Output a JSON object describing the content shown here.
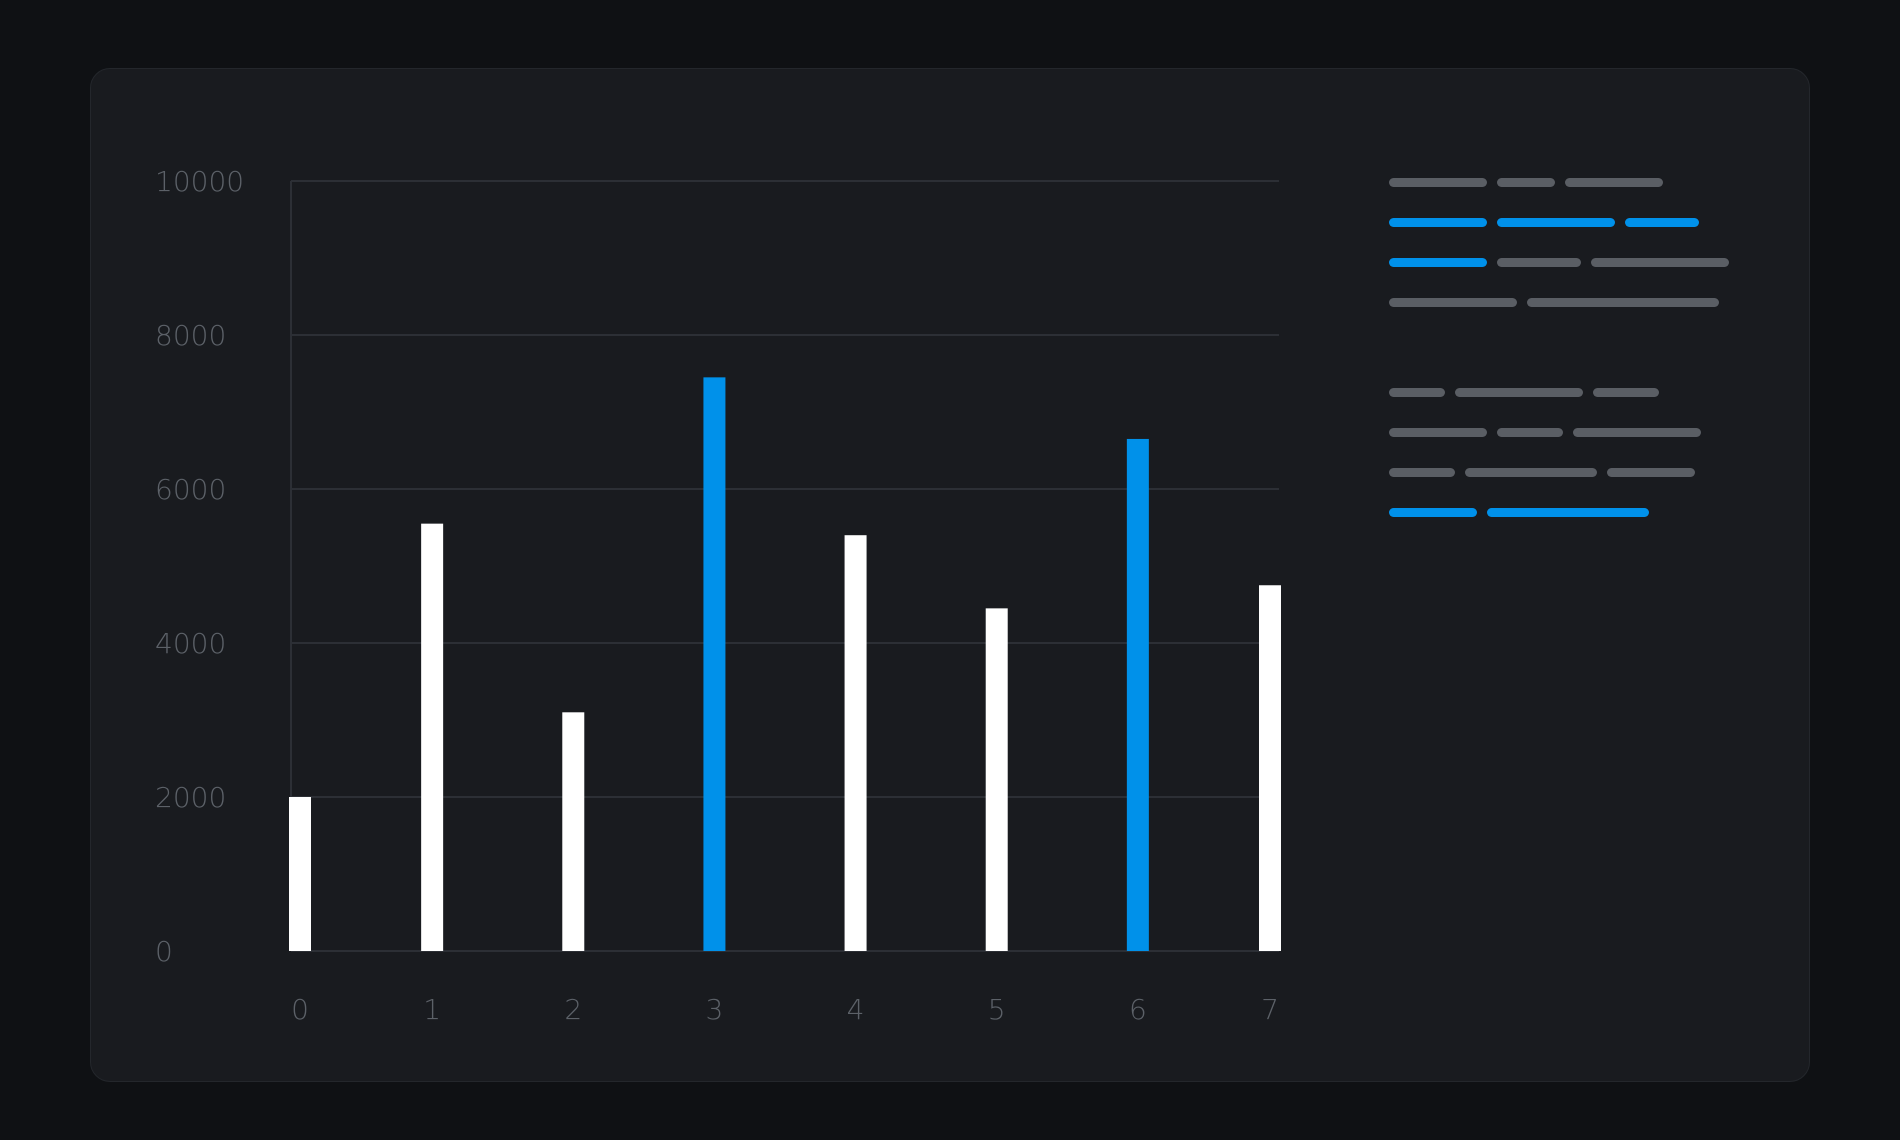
{
  "chart_data": {
    "type": "bar",
    "categories": [
      "0",
      "1",
      "2",
      "3",
      "4",
      "5",
      "6",
      "7"
    ],
    "values": [
      2000,
      5550,
      3100,
      7450,
      5400,
      4450,
      6650,
      4750
    ],
    "highlighted": [
      false,
      false,
      false,
      true,
      false,
      false,
      true,
      false
    ],
    "y_ticks": [
      "0",
      "2000",
      "4000",
      "6000",
      "8000",
      "10000"
    ],
    "ylim": [
      0,
      10000
    ],
    "grid": true,
    "legend_placement": "right",
    "colors": {
      "bar": "#ffffff",
      "highlight": "#0091ea",
      "axis_text": "#5c6168",
      "grid": "#2c2f35",
      "legend_muted": "#5a5e64",
      "background": "#191b1f",
      "page": "#0f1114"
    }
  },
  "legend": {
    "rows": [
      {
        "segments": [
          "muted",
          "muted",
          "muted"
        ]
      },
      {
        "segments": [
          "accent",
          "accent",
          "accent"
        ]
      },
      {
        "segments": [
          "accent",
          "muted",
          "muted"
        ]
      },
      {
        "segments": [
          "muted",
          "muted"
        ]
      },
      {
        "segments": [
          "muted",
          "muted",
          "muted"
        ]
      },
      {
        "segments": [
          "muted",
          "muted",
          "muted"
        ]
      },
      {
        "segments": [
          "muted",
          "muted",
          "muted"
        ]
      },
      {
        "segments": [
          "accent",
          "accent"
        ]
      }
    ]
  }
}
